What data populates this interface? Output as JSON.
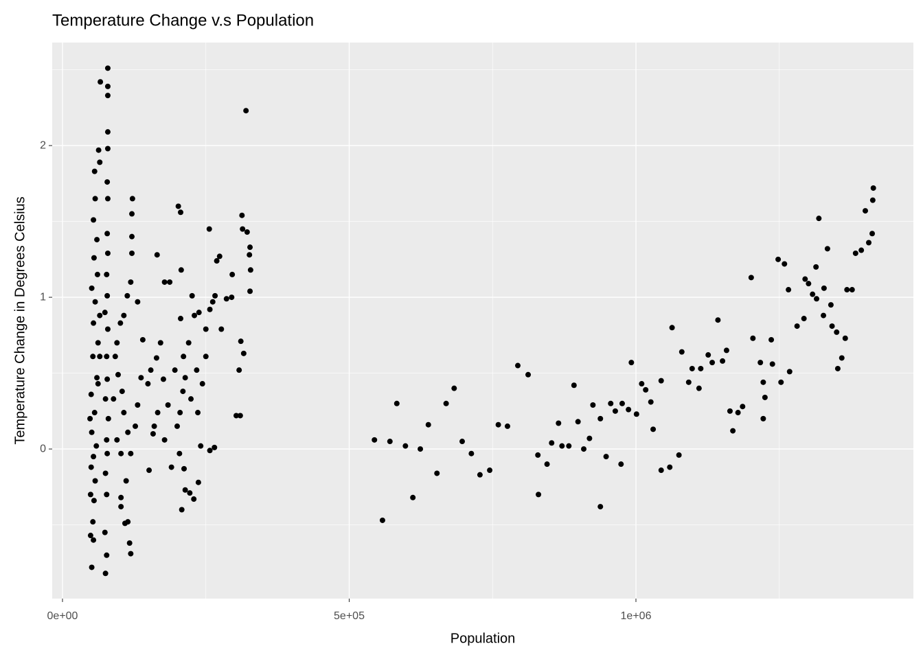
{
  "chart_data": {
    "type": "scatter",
    "title": "Temperature Change v.s Population",
    "x_label": "Population",
    "y_label": "Temperature Change in Degrees Celsius",
    "xlim": [
      -17964,
      1483832
    ],
    "ylim": [
      -0.986,
      2.679
    ],
    "xticks": [
      {
        "value": 0,
        "label": "0e+00"
      },
      {
        "value": 500000,
        "label": "5e+05"
      },
      {
        "value": 1000000,
        "label": "1e+06"
      }
    ],
    "yticks": [
      0,
      1,
      2
    ],
    "grid": true,
    "color": "#000000",
    "x": [
      544000,
      558000,
      571000,
      583000,
      598000,
      611000,
      624000,
      638000,
      653000,
      669000,
      683000,
      697000,
      713000,
      728000,
      745000,
      760000,
      776000,
      794000,
      812000,
      829000,
      830000,
      845000,
      853000,
      865000,
      871000,
      883000,
      892000,
      899000,
      909000,
      919000,
      925000,
      938000,
      938000,
      948000,
      956000,
      964000,
      974000,
      976000,
      987000,
      1001000,
      992000,
      1010000,
      1017000,
      1026000,
      1030000,
      1044000,
      1044000,
      1059000,
      1063000,
      1075000,
      1080000,
      1092000,
      1098000,
      1110000,
      1113000,
      1126000,
      1133000,
      1143000,
      1151000,
      1158000,
      1164000,
      1169000,
      1178000,
      1186000,
      1201000,
      1204000,
      1217000,
      1222000,
      1222000,
      1225000,
      1236000,
      1238000,
      1248000,
      1253000,
      1259000,
      1266000,
      1268000,
      1281000,
      1293000,
      1295000,
      1301000,
      1308000,
      1314000,
      1315000,
      1319000,
      1327000,
      1328000,
      1334000,
      1340000,
      1342000,
      1350000,
      1352000,
      1359000,
      1365000,
      1368000,
      1377000,
      1383000,
      1393000,
      1400000,
      1406000,
      1412000,
      1413000,
      1414000,
      51000,
      54000,
      53000,
      55000,
      49000,
      57000,
      50000,
      54000,
      59000,
      51000,
      56000,
      50000,
      60000,
      53000,
      62000,
      54000,
      57000,
      51000,
      61000,
      55000,
      60000,
      54000,
      57000,
      56000,
      63000,
      65000,
      66000,
      62000,
      48000,
      65000,
      65000,
      49000,
      79000,
      79000,
      79000,
      79000,
      79000,
      78000,
      79000,
      78000,
      79000,
      77000,
      78000,
      74000,
      79000,
      77000,
      78000,
      75000,
      80000,
      77000,
      78000,
      75000,
      77000,
      74000,
      77000,
      75000,
      122000,
      121000,
      121000,
      121000,
      119000,
      113000,
      107000,
      101000,
      95000,
      92000,
      97000,
      104000,
      107000,
      114000,
      119000,
      111000,
      114000,
      117000,
      119000,
      102000,
      102000,
      109000,
      127000,
      131000,
      137000,
      140000,
      131000,
      102000,
      95000,
      89000,
      165000,
      178000,
      187000,
      202000,
      206000,
      207000,
      206000,
      211000,
      210000,
      205000,
      200000,
      204000,
      208000,
      212000,
      214000,
      220000,
      226000,
      230000,
      234000,
      236000,
      241000,
      222000,
      229000,
      237000,
      244000,
      250000,
      256000,
      257000,
      262000,
      266000,
      269000,
      274000,
      277000,
      286000,
      295000,
      296000,
      308000,
      310000,
      313000,
      314000,
      316000,
      320000,
      322000,
      326000,
      327000,
      328000,
      327000,
      311000,
      303000,
      265000,
      257000,
      149000,
      154000,
      160000,
      166000,
      184000,
      190000,
      196000,
      171000,
      178000,
      151000,
      164000,
      158000,
      214000,
      224000,
      238000,
      250000,
      176000
    ],
    "y": [
      0.06,
      -0.47,
      0.05,
      0.3,
      0.02,
      -0.32,
      0.0,
      0.16,
      -0.16,
      0.3,
      0.4,
      0.05,
      -0.03,
      -0.17,
      -0.14,
      0.16,
      0.15,
      0.55,
      0.49,
      -0.04,
      -0.3,
      -0.1,
      0.04,
      0.17,
      0.02,
      0.02,
      0.42,
      0.18,
      0.0,
      0.07,
      0.29,
      -0.38,
      0.2,
      -0.05,
      0.3,
      0.25,
      -0.1,
      0.3,
      0.26,
      0.23,
      0.57,
      0.43,
      0.39,
      0.31,
      0.13,
      0.45,
      -0.14,
      -0.12,
      0.8,
      -0.04,
      0.64,
      0.44,
      0.53,
      0.4,
      0.53,
      0.62,
      0.57,
      0.85,
      0.58,
      0.65,
      0.25,
      0.12,
      0.24,
      0.28,
      1.13,
      0.73,
      0.57,
      0.44,
      0.2,
      0.34,
      0.72,
      0.56,
      1.25,
      0.44,
      1.22,
      1.05,
      0.51,
      0.81,
      0.86,
      1.12,
      1.09,
      1.02,
      1.2,
      0.99,
      1.52,
      0.88,
      1.06,
      1.32,
      0.95,
      0.81,
      0.77,
      0.53,
      0.6,
      0.73,
      1.05,
      1.05,
      1.29,
      1.31,
      1.57,
      1.36,
      1.42,
      1.64,
      1.72,
      -0.78,
      -0.6,
      -0.48,
      -0.34,
      -0.3,
      -0.21,
      -0.12,
      -0.05,
      0.02,
      0.11,
      0.24,
      0.36,
      0.47,
      0.61,
      0.7,
      0.83,
      0.97,
      1.06,
      1.15,
      1.26,
      1.38,
      1.51,
      1.65,
      1.83,
      1.97,
      1.89,
      2.42,
      0.43,
      0.2,
      0.61,
      0.88,
      -0.57,
      2.51,
      2.39,
      2.33,
      2.09,
      1.98,
      1.76,
      1.65,
      1.42,
      1.29,
      1.15,
      1.01,
      0.9,
      0.79,
      0.61,
      0.46,
      0.33,
      0.2,
      0.06,
      -0.03,
      -0.16,
      -0.3,
      -0.55,
      -0.7,
      -0.82,
      1.65,
      1.55,
      1.4,
      1.29,
      1.1,
      1.01,
      0.88,
      0.83,
      0.7,
      0.61,
      0.49,
      0.38,
      0.24,
      0.11,
      -0.03,
      -0.21,
      -0.48,
      -0.62,
      -0.69,
      -0.32,
      -0.38,
      -0.49,
      0.15,
      0.29,
      0.47,
      0.72,
      0.97,
      -0.03,
      0.06,
      0.33,
      1.28,
      1.1,
      1.1,
      1.6,
      1.56,
      1.18,
      0.86,
      0.61,
      0.38,
      0.24,
      0.15,
      -0.03,
      -0.4,
      -0.13,
      -0.27,
      0.7,
      1.01,
      0.88,
      0.52,
      0.24,
      0.02,
      -0.29,
      -0.33,
      -0.22,
      0.43,
      0.61,
      1.45,
      0.92,
      0.97,
      1.01,
      1.24,
      1.27,
      0.79,
      0.99,
      1.0,
      1.15,
      0.52,
      0.22,
      1.54,
      1.45,
      0.63,
      2.23,
      1.43,
      1.28,
      1.33,
      1.18,
      1.04,
      0.71,
      0.22,
      0.01,
      -0.01,
      0.43,
      0.52,
      0.15,
      0.24,
      0.29,
      -0.12,
      0.52,
      0.7,
      0.06,
      -0.14,
      0.6,
      0.1,
      0.47,
      0.33,
      0.9,
      0.79,
      0.46
    ]
  }
}
